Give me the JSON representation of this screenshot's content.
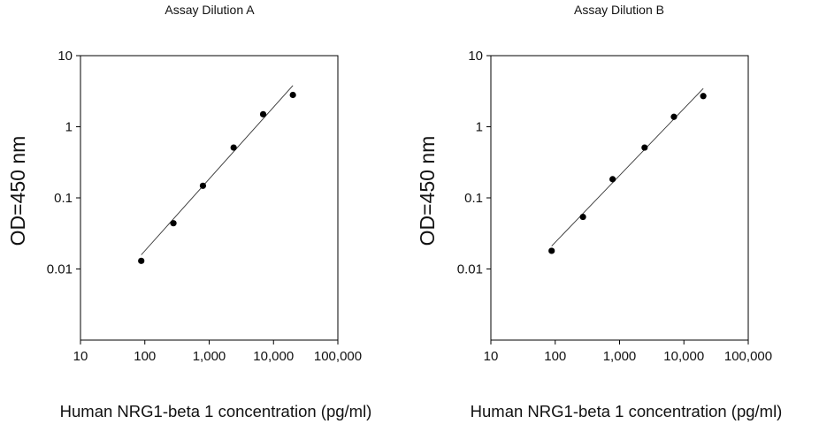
{
  "chart_data": [
    {
      "type": "scatter",
      "title": "Assay Dilution A",
      "xlabel": "Human NRG1-beta 1 concentration (pg/ml)",
      "ylabel": "OD=450 nm",
      "x_scale": "log",
      "y_scale": "log",
      "xlim": [
        10,
        100000
      ],
      "ylim": [
        0.001,
        10
      ],
      "x_ticks": [
        "10",
        "100",
        "1,000",
        "10,000",
        "100,000"
      ],
      "y_ticks": [
        "0.01",
        "0.1",
        "1",
        "10"
      ],
      "grid": false,
      "legend": "none",
      "point_color": "#000000",
      "series": [
        {
          "points": [
            {
              "x": 88,
              "y": 0.013
            },
            {
              "x": 278,
              "y": 0.044
            },
            {
              "x": 800,
              "y": 0.148
            },
            {
              "x": 2400,
              "y": 0.51
            },
            {
              "x": 6900,
              "y": 1.5
            },
            {
              "x": 20000,
              "y": 2.8
            }
          ]
        }
      ],
      "fit_line": [
        {
          "x": 88,
          "y": 0.0158
        },
        {
          "x": 20000,
          "y": 3.8
        }
      ]
    },
    {
      "type": "scatter",
      "title": "Assay Dilution B",
      "xlabel": "Human NRG1-beta 1 concentration (pg/ml)",
      "ylabel": "OD=450 nm",
      "x_scale": "log",
      "y_scale": "log",
      "xlim": [
        10,
        100000
      ],
      "ylim": [
        0.001,
        10
      ],
      "x_ticks": [
        "10",
        "100",
        "1,000",
        "10,000",
        "100,000"
      ],
      "y_ticks": [
        "0.01",
        "0.1",
        "1",
        "10"
      ],
      "grid": false,
      "legend": "none",
      "point_color": "#000000",
      "series": [
        {
          "points": [
            {
              "x": 88,
              "y": 0.018
            },
            {
              "x": 270,
              "y": 0.054
            },
            {
              "x": 780,
              "y": 0.183
            },
            {
              "x": 2450,
              "y": 0.51
            },
            {
              "x": 7000,
              "y": 1.38
            },
            {
              "x": 20000,
              "y": 2.7
            }
          ]
        }
      ],
      "fit_line": [
        {
          "x": 88,
          "y": 0.021
        },
        {
          "x": 20000,
          "y": 3.45
        }
      ]
    }
  ]
}
